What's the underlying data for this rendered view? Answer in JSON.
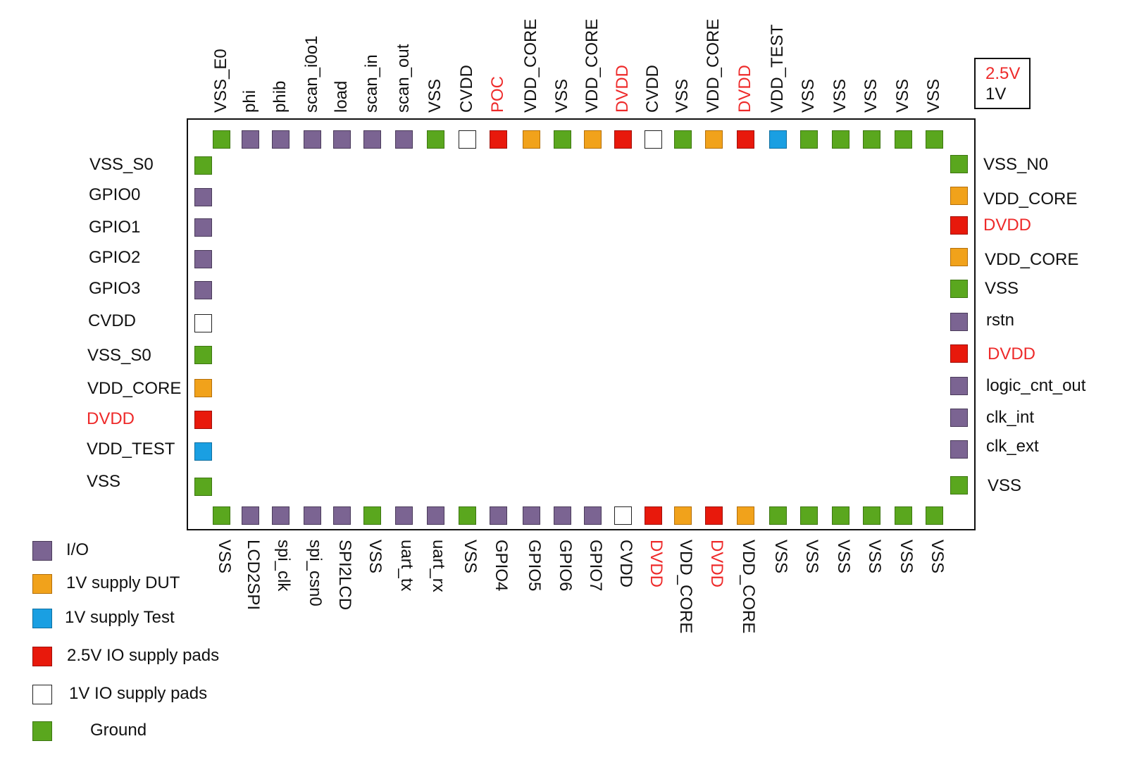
{
  "colors": {
    "io": {
      "fill": "#7b6492",
      "stroke": "#4a3b5a"
    },
    "dut": {
      "fill": "#f1a21b",
      "stroke": "#b36f0b"
    },
    "test": {
      "fill": "#1a9fe2",
      "stroke": "#0f6fa0"
    },
    "io25": {
      "fill": "#e8190c",
      "stroke": "#a0100a"
    },
    "io1v": {
      "fill": "#ffffff",
      "stroke": "#222222"
    },
    "ground": {
      "fill": "#5aa71e",
      "stroke": "#3d7611"
    },
    "red_text": "#ee2a2a"
  },
  "voltage_box": {
    "v25": "2.5V",
    "v1": "1V"
  },
  "top_pads": [
    {
      "label": "VSS_E0",
      "type": "ground"
    },
    {
      "label": "phi",
      "type": "io"
    },
    {
      "label": "phib",
      "type": "io"
    },
    {
      "label": "scan_i0o1",
      "type": "io"
    },
    {
      "label": "load",
      "type": "io"
    },
    {
      "label": "scan_in",
      "type": "io"
    },
    {
      "label": "scan_out",
      "type": "io"
    },
    {
      "label": "VSS",
      "type": "ground"
    },
    {
      "label": "CVDD",
      "type": "io1v"
    },
    {
      "label": "POC",
      "type": "io25",
      "red": true
    },
    {
      "label": "VDD_CORE",
      "type": "dut"
    },
    {
      "label": "VSS",
      "type": "ground"
    },
    {
      "label": "VDD_CORE",
      "type": "dut"
    },
    {
      "label": "DVDD",
      "type": "io25",
      "red": true
    },
    {
      "label": "CVDD",
      "type": "io1v"
    },
    {
      "label": "VSS",
      "type": "ground"
    },
    {
      "label": "VDD_CORE",
      "type": "dut"
    },
    {
      "label": "DVDD",
      "type": "io25",
      "red": true
    },
    {
      "label": "VDD_TEST",
      "type": "test"
    },
    {
      "label": "VSS",
      "type": "ground"
    },
    {
      "label": "VSS",
      "type": "ground"
    },
    {
      "label": "VSS",
      "type": "ground"
    },
    {
      "label": "VSS",
      "type": "ground"
    },
    {
      "label": "VSS",
      "type": "ground"
    }
  ],
  "bottom_pads": [
    {
      "label": "VSS",
      "type": "ground"
    },
    {
      "label": "LCD2SPI",
      "type": "io"
    },
    {
      "label": "spi_clk",
      "type": "io"
    },
    {
      "label": "spi_csn0",
      "type": "io"
    },
    {
      "label": "SPI2LCD",
      "type": "io"
    },
    {
      "label": "VSS",
      "type": "ground"
    },
    {
      "label": "uart_tx",
      "type": "io"
    },
    {
      "label": "uart_rx",
      "type": "io"
    },
    {
      "label": "VSS",
      "type": "ground"
    },
    {
      "label": "GPIO4",
      "type": "io"
    },
    {
      "label": "GPIO5",
      "type": "io"
    },
    {
      "label": "GPIO6",
      "type": "io"
    },
    {
      "label": "GPIO7",
      "type": "io"
    },
    {
      "label": "CVDD",
      "type": "io1v"
    },
    {
      "label": "DVDD",
      "type": "io25",
      "red": true
    },
    {
      "label": "VDD_CORE",
      "type": "dut"
    },
    {
      "label": "DVDD",
      "type": "io25",
      "red": true
    },
    {
      "label": "VDD_CORE",
      "type": "dut"
    },
    {
      "label": "VSS",
      "type": "ground"
    },
    {
      "label": "VSS",
      "type": "ground"
    },
    {
      "label": "VSS",
      "type": "ground"
    },
    {
      "label": "VSS",
      "type": "ground"
    },
    {
      "label": "VSS",
      "type": "ground"
    },
    {
      "label": "VSS",
      "type": "ground"
    }
  ],
  "left_pads": [
    {
      "label": "VSS_S0",
      "type": "ground"
    },
    {
      "label": "GPIO0",
      "type": "io"
    },
    {
      "label": "GPIO1",
      "type": "io"
    },
    {
      "label": "GPIO2",
      "type": "io"
    },
    {
      "label": "GPIO3",
      "type": "io"
    },
    {
      "label": "CVDD",
      "type": "io1v"
    },
    {
      "label": "VSS_S0",
      "type": "ground"
    },
    {
      "label": "VDD_CORE",
      "type": "dut"
    },
    {
      "label": "DVDD",
      "type": "io25",
      "red": true
    },
    {
      "label": "VDD_TEST",
      "type": "test"
    },
    {
      "label": "VSS",
      "type": "ground"
    }
  ],
  "right_pads": [
    {
      "label": "VSS_N0",
      "type": "ground"
    },
    {
      "label": "VDD_CORE",
      "type": "dut"
    },
    {
      "label": "DVDD",
      "type": "io25",
      "red": true
    },
    {
      "label": "VDD_CORE",
      "type": "dut"
    },
    {
      "label": "VSS",
      "type": "ground"
    },
    {
      "label": "rstn",
      "type": "io"
    },
    {
      "label": "DVDD",
      "type": "io25",
      "red": true
    },
    {
      "label": "logic_cnt_out",
      "type": "io"
    },
    {
      "label": "clk_int",
      "type": "io"
    },
    {
      "label": "clk_ext",
      "type": "io"
    },
    {
      "label": "VSS",
      "type": "ground"
    }
  ],
  "legend": [
    {
      "label": "I/O",
      "type": "io"
    },
    {
      "label": "1V supply DUT",
      "type": "dut"
    },
    {
      "label": "1V supply Test",
      "type": "test"
    },
    {
      "label": "2.5V IO supply pads",
      "type": "io25"
    },
    {
      "label": "1V IO supply pads",
      "type": "io1v"
    },
    {
      "label": "Ground",
      "type": "ground"
    }
  ]
}
